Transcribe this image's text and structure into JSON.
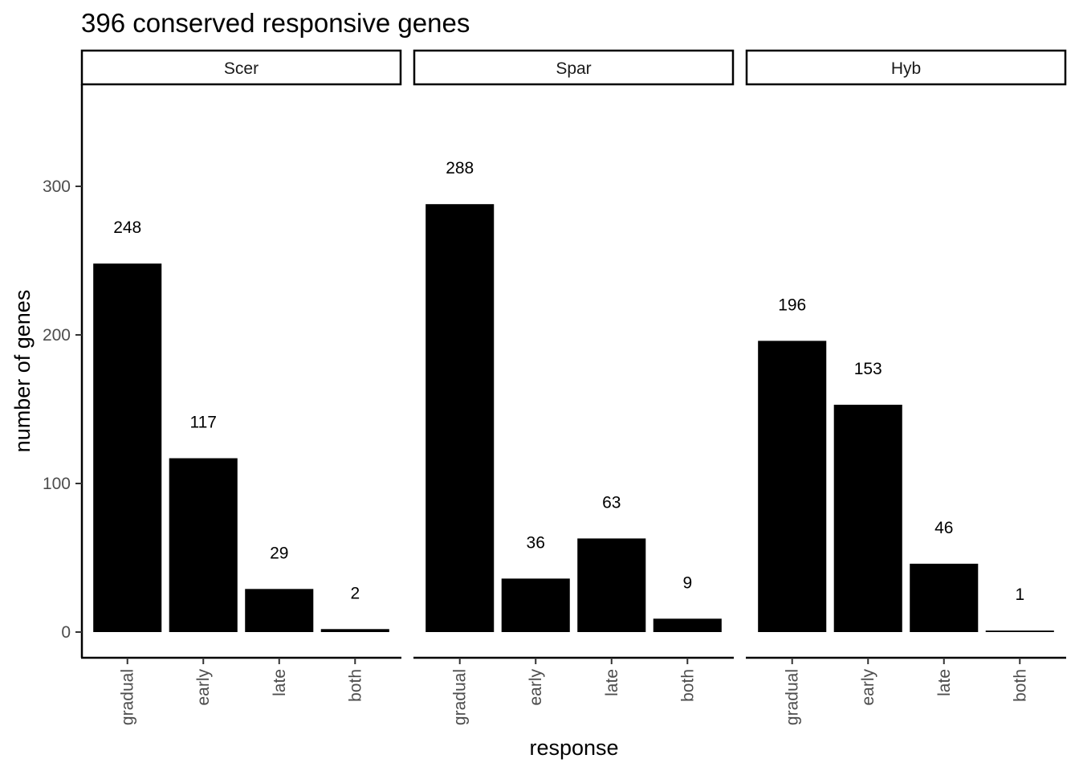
{
  "chart_data": {
    "type": "bar",
    "title": "396 conserved responsive genes",
    "xlabel": "response",
    "ylabel": "number of genes",
    "ylim": [
      -17,
      365
    ],
    "yticks": [
      0,
      100,
      200,
      300
    ],
    "categories": [
      "gradual",
      "early",
      "late",
      "both"
    ],
    "facets": [
      {
        "name": "Scer",
        "values": [
          248,
          117,
          29,
          2
        ]
      },
      {
        "name": "Spar",
        "values": [
          288,
          36,
          63,
          9
        ]
      },
      {
        "name": "Hyb",
        "values": [
          196,
          153,
          46,
          1
        ]
      }
    ],
    "bar_color": "#000000",
    "grid": false,
    "legend": "none"
  }
}
